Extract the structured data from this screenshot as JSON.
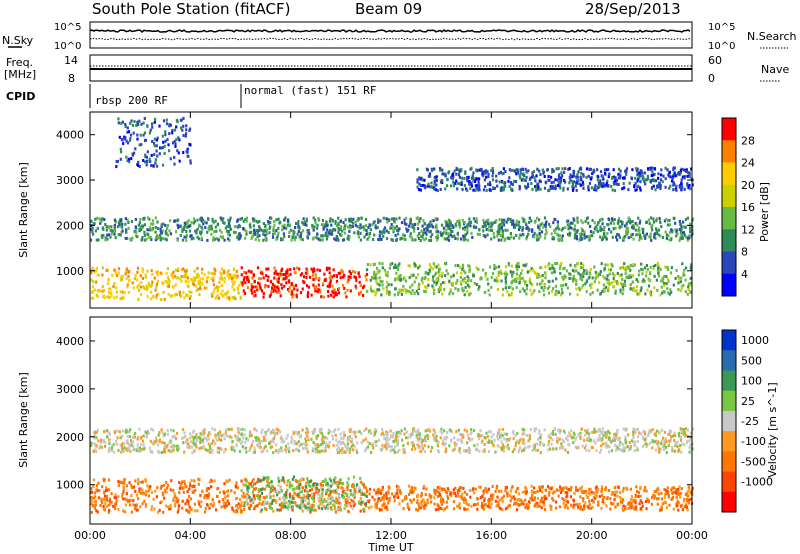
{
  "header": {
    "station": "South Pole Station (fitACF)",
    "beam": "Beam 09",
    "date": "28/Sep/2013"
  },
  "aux": {
    "nsky_label": "N.Sky",
    "nsky_ticks": [
      "10^5",
      "10^0"
    ],
    "nsearch_label": "N.Search",
    "nsearch_ticks": [
      "10^5",
      "10^0"
    ],
    "freq_label": "Freq.",
    "freq_unit": "[MHz]",
    "freq_ticks": [
      "14",
      "8"
    ],
    "nave_label": "Nave",
    "nave_ticks": [
      "60",
      "0"
    ],
    "cpid_label": "CPID",
    "cpid_programs": [
      {
        "name": "rbsp 200 RF",
        "start": "00:00"
      },
      {
        "name": "normal (fast) 151 RF",
        "start": "06:00"
      }
    ]
  },
  "chart_data": [
    {
      "type": "heatmap",
      "name": "power-panel",
      "ylabel": "Slant Range [km]",
      "yticks": [
        1000,
        2000,
        3000,
        4000
      ],
      "ylim": [
        180,
        4500
      ],
      "xlim": [
        "00:00",
        "24:00"
      ],
      "colorbar": {
        "label": "Power [dB]",
        "ticks": [
          "4",
          "8",
          "12",
          "16",
          "20",
          "24",
          "28"
        ],
        "colors": [
          "#0000ff",
          "#2a46b8",
          "#2e8b57",
          "#66bb44",
          "#ccd000",
          "#ffcc00",
          "#ff8000",
          "#ff0000"
        ]
      },
      "scatter_bands": [
        {
          "t0": 0.0,
          "t1": 6.0,
          "r0": 400,
          "r1": 1100,
          "level": 5
        },
        {
          "t0": 0.0,
          "t1": 24.0,
          "r0": 1700,
          "r1": 2200,
          "level": 2
        },
        {
          "t0": 1.0,
          "t1": 4.0,
          "r0": 3300,
          "r1": 4400,
          "level": 1
        },
        {
          "t0": 6.0,
          "t1": 11.0,
          "r0": 450,
          "r1": 1100,
          "level": 7
        },
        {
          "t0": 11.0,
          "t1": 24.0,
          "r0": 500,
          "r1": 1200,
          "level": 3
        },
        {
          "t0": 13.0,
          "t1": 24.0,
          "r0": 2800,
          "r1": 3300,
          "level": 1
        }
      ]
    },
    {
      "type": "heatmap",
      "name": "velocity-panel",
      "ylabel": "Slant Range [km]",
      "yticks": [
        1000,
        2000,
        3000,
        4000
      ],
      "ylim": [
        180,
        4500
      ],
      "xlim": [
        "00:00",
        "24:00"
      ],
      "xticks": [
        "00:00",
        "04:00",
        "08:00",
        "12:00",
        "16:00",
        "20:00",
        "00:00"
      ],
      "xlabel": "Time UT",
      "colorbar": {
        "label": "Velocity [m s^-1]",
        "ticks": [
          "1000",
          "500",
          "100",
          "25",
          "-25",
          "-100",
          "-500",
          "-1000"
        ],
        "colors": [
          "#0033cc",
          "#2a6bb0",
          "#3a9a55",
          "#77c644",
          "#c8c8c8",
          "#ff9a20",
          "#ff7700",
          "#ff4400",
          "#ff0000"
        ]
      },
      "scatter_bands": [
        {
          "t0": 0.0,
          "t1": 11.0,
          "r0": 450,
          "r1": 1150,
          "level": 6
        },
        {
          "t0": 6.0,
          "t1": 11.0,
          "r0": 500,
          "r1": 1200,
          "level": 3
        },
        {
          "t0": 0.0,
          "t1": 24.0,
          "r0": 1700,
          "r1": 2200,
          "level": 4
        },
        {
          "t0": 11.0,
          "t1": 24.0,
          "r0": 500,
          "r1": 1000,
          "level": 6
        }
      ]
    }
  ]
}
